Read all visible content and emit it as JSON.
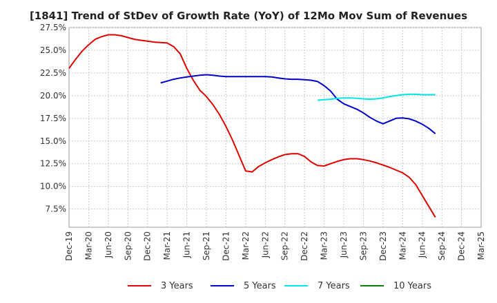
{
  "chart_data": {
    "type": "line",
    "title": "[1841]  Trend of StDev of Growth Rate (YoY) of 12Mo Mov Sum of Revenues",
    "xlabel": "",
    "ylabel": "",
    "x_tick_labels": [
      "Dec-19",
      "Mar-20",
      "Jun-20",
      "Sep-20",
      "Dec-20",
      "Mar-21",
      "Jun-21",
      "Sep-21",
      "Dec-21",
      "Mar-22",
      "Jun-22",
      "Sep-22",
      "Dec-22",
      "Mar-23",
      "Jun-23",
      "Sep-23",
      "Dec-23",
      "Mar-24",
      "Jun-24",
      "Sep-24",
      "Dec-24",
      "Mar-25"
    ],
    "y_tick_labels": [
      "7.5%",
      "10.0%",
      "12.5%",
      "15.0%",
      "17.5%",
      "20.0%",
      "22.5%",
      "25.0%",
      "27.5%"
    ],
    "y_ticks": [
      7.5,
      10,
      12.5,
      15,
      17.5,
      20,
      22.5,
      25,
      27.5
    ],
    "ylim": [
      5.5,
      27.5
    ],
    "x_range": [
      0,
      63
    ],
    "grid": true,
    "legend_position": "bottom",
    "series": [
      {
        "name": "3 Years",
        "color": "#e00000",
        "points": [
          [
            0,
            23.0
          ],
          [
            1,
            24.0
          ],
          [
            2,
            24.9
          ],
          [
            3,
            25.6
          ],
          [
            4,
            26.2
          ],
          [
            5,
            26.5
          ],
          [
            6,
            26.7
          ],
          [
            7,
            26.7
          ],
          [
            8,
            26.6
          ],
          [
            9,
            26.4
          ],
          [
            10,
            26.2
          ],
          [
            11,
            26.1
          ],
          [
            12,
            26.0
          ],
          [
            13,
            25.9
          ],
          [
            14,
            25.85
          ],
          [
            15,
            25.8
          ],
          [
            16,
            25.4
          ],
          [
            17,
            24.6
          ],
          [
            18,
            23.0
          ],
          [
            19,
            21.7
          ],
          [
            20,
            20.6
          ],
          [
            21,
            19.9
          ],
          [
            22,
            19.0
          ],
          [
            23,
            17.9
          ],
          [
            24,
            16.6
          ],
          [
            25,
            15.1
          ],
          [
            26,
            13.4
          ],
          [
            27,
            11.7
          ],
          [
            28,
            11.6
          ],
          [
            29,
            12.2
          ],
          [
            30,
            12.6
          ],
          [
            31,
            12.95
          ],
          [
            32,
            13.25
          ],
          [
            33,
            13.5
          ],
          [
            34,
            13.6
          ],
          [
            35,
            13.6
          ],
          [
            36,
            13.3
          ],
          [
            37,
            12.7
          ],
          [
            38,
            12.3
          ],
          [
            39,
            12.25
          ],
          [
            40,
            12.5
          ],
          [
            41,
            12.75
          ],
          [
            42,
            12.95
          ],
          [
            43,
            13.05
          ],
          [
            44,
            13.05
          ],
          [
            45,
            12.95
          ],
          [
            46,
            12.8
          ],
          [
            47,
            12.6
          ],
          [
            48,
            12.35
          ],
          [
            49,
            12.1
          ],
          [
            50,
            11.8
          ],
          [
            51,
            11.5
          ],
          [
            52,
            11.0
          ],
          [
            53,
            10.2
          ],
          [
            54,
            9.0
          ],
          [
            55,
            7.8
          ],
          [
            56,
            6.6
          ]
        ]
      },
      {
        "name": "5 Years",
        "color": "#0000cc",
        "points": [
          [
            14,
            21.4
          ],
          [
            15,
            21.6
          ],
          [
            16,
            21.8
          ],
          [
            17,
            21.95
          ],
          [
            18,
            22.05
          ],
          [
            19,
            22.15
          ],
          [
            20,
            22.25
          ],
          [
            21,
            22.3
          ],
          [
            22,
            22.25
          ],
          [
            23,
            22.15
          ],
          [
            24,
            22.1
          ],
          [
            25,
            22.1
          ],
          [
            26,
            22.1
          ],
          [
            27,
            22.1
          ],
          [
            28,
            22.1
          ],
          [
            29,
            22.1
          ],
          [
            30,
            22.1
          ],
          [
            31,
            22.05
          ],
          [
            32,
            21.95
          ],
          [
            33,
            21.85
          ],
          [
            34,
            21.8
          ],
          [
            35,
            21.8
          ],
          [
            36,
            21.75
          ],
          [
            37,
            21.7
          ],
          [
            38,
            21.55
          ],
          [
            39,
            21.1
          ],
          [
            40,
            20.5
          ],
          [
            41,
            19.6
          ],
          [
            42,
            19.1
          ],
          [
            43,
            18.8
          ],
          [
            44,
            18.5
          ],
          [
            45,
            18.1
          ],
          [
            46,
            17.6
          ],
          [
            47,
            17.2
          ],
          [
            48,
            16.9
          ],
          [
            49,
            17.2
          ],
          [
            50,
            17.5
          ],
          [
            51,
            17.55
          ],
          [
            52,
            17.45
          ],
          [
            53,
            17.2
          ],
          [
            54,
            16.85
          ],
          [
            55,
            16.4
          ],
          [
            56,
            15.8
          ]
        ]
      },
      {
        "name": "7 Years",
        "color": "#00e5e5",
        "points": [
          [
            38,
            19.5
          ],
          [
            39,
            19.55
          ],
          [
            40,
            19.6
          ],
          [
            41,
            19.7
          ],
          [
            42,
            19.75
          ],
          [
            43,
            19.75
          ],
          [
            44,
            19.7
          ],
          [
            45,
            19.65
          ],
          [
            46,
            19.6
          ],
          [
            47,
            19.65
          ],
          [
            48,
            19.75
          ],
          [
            49,
            19.9
          ],
          [
            50,
            20.0
          ],
          [
            51,
            20.1
          ],
          [
            52,
            20.15
          ],
          [
            53,
            20.15
          ],
          [
            54,
            20.1
          ],
          [
            55,
            20.1
          ],
          [
            56,
            20.1
          ]
        ]
      },
      {
        "name": "10 Years",
        "color": "#008000",
        "points": []
      }
    ]
  }
}
